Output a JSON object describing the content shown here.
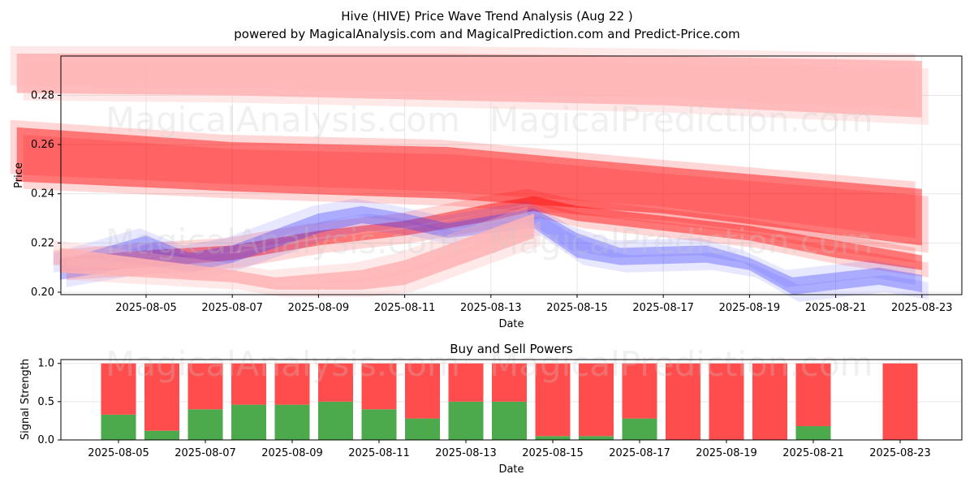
{
  "figure": {
    "title_line1": "Hive (HIVE) Price Wave Trend Analysis (Aug 22 )",
    "title_line2": "powered by MagicalAnalysis.com and MagicalPrediction.com and Predict-Price.com",
    "watermarks": [
      "MagicalAnalysis.com",
      "MagicalPrediction.com"
    ]
  },
  "colors": {
    "sell_red": "#ff4d4d",
    "buy_green": "#4caa4c",
    "band_red": "#ff0000",
    "band_blue": "#3b3bff",
    "band_pink": "#ffb3b3",
    "grid": "#e6e6e6"
  },
  "chart_data": [
    {
      "type": "area",
      "title": "",
      "xlabel": "Date",
      "ylabel": "Price",
      "x_ticks": [
        "2025-08-05",
        "2025-08-07",
        "2025-08-09",
        "2025-08-11",
        "2025-08-13",
        "2025-08-15",
        "2025-08-17",
        "2025-08-19",
        "2025-08-21",
        "2025-08-23"
      ],
      "y_ticks": [
        "0.20",
        "0.22",
        "0.24",
        "0.26",
        "0.28"
      ],
      "xlim": [
        "2025-08-02",
        "2025-08-23"
      ],
      "ylim": [
        0.199,
        0.296
      ],
      "grid": true,
      "series": [
        {
          "color": "pink",
          "x": [
            "2025-08-02",
            "2025-08-07",
            "2025-08-12",
            "2025-08-17",
            "2025-08-23"
          ],
          "lower": [
            0.281,
            0.28,
            0.278,
            0.276,
            0.271
          ],
          "upper": [
            0.297,
            0.297,
            0.297,
            0.296,
            0.294
          ]
        },
        {
          "color": "red",
          "x": [
            "2025-08-02",
            "2025-08-07",
            "2025-08-12",
            "2025-08-17",
            "2025-08-23"
          ],
          "lower": [
            0.245,
            0.241,
            0.238,
            0.232,
            0.219
          ],
          "upper": [
            0.267,
            0.261,
            0.259,
            0.251,
            0.242
          ]
        },
        {
          "color": "red",
          "x": [
            "2025-08-03",
            "2025-08-05",
            "2025-08-07",
            "2025-08-09",
            "2025-08-11",
            "2025-08-13",
            "2025-08-14",
            "2025-08-15",
            "2025-08-17",
            "2025-08-19",
            "2025-08-21",
            "2025-08-23"
          ],
          "lower": [
            0.208,
            0.21,
            0.213,
            0.219,
            0.223,
            0.229,
            0.233,
            0.229,
            0.225,
            0.221,
            0.214,
            0.209
          ],
          "upper": [
            0.214,
            0.217,
            0.219,
            0.225,
            0.229,
            0.236,
            0.239,
            0.235,
            0.231,
            0.227,
            0.221,
            0.215
          ]
        },
        {
          "color": "blue",
          "x": [
            "2025-08-03",
            "2025-08-05",
            "2025-08-06",
            "2025-08-07",
            "2025-08-09",
            "2025-08-10",
            "2025-08-11",
            "2025-08-12",
            "2025-08-14",
            "2025-08-15",
            "2025-08-16",
            "2025-08-18",
            "2025-08-19",
            "2025-08-20",
            "2025-08-22",
            "2025-08-23"
          ],
          "lower": [
            0.205,
            0.211,
            0.208,
            0.212,
            0.224,
            0.228,
            0.226,
            0.222,
            0.226,
            0.214,
            0.211,
            0.212,
            0.209,
            0.199,
            0.203,
            0.2
          ],
          "upper": [
            0.213,
            0.223,
            0.216,
            0.219,
            0.232,
            0.235,
            0.232,
            0.228,
            0.234,
            0.224,
            0.218,
            0.219,
            0.214,
            0.206,
            0.21,
            0.207
          ]
        },
        {
          "color": "pink",
          "x": [
            "2025-08-03",
            "2025-08-07",
            "2025-08-08",
            "2025-08-10",
            "2025-08-11",
            "2025-08-14"
          ],
          "lower": [
            0.208,
            0.204,
            0.201,
            0.201,
            0.203,
            0.222
          ],
          "upper": [
            0.218,
            0.209,
            0.206,
            0.209,
            0.213,
            0.232
          ]
        }
      ]
    },
    {
      "type": "bar",
      "title": "Buy and Sell Powers",
      "xlabel": "Date",
      "ylabel": "Signal Strength",
      "x_ticks": [
        "2025-08-05",
        "2025-08-07",
        "2025-08-09",
        "2025-08-11",
        "2025-08-13",
        "2025-08-15",
        "2025-08-17",
        "2025-08-19",
        "2025-08-21",
        "2025-08-23"
      ],
      "y_ticks": [
        "0.0",
        "0.5",
        "1.0"
      ],
      "ylim": [
        0,
        1.05
      ],
      "grid": true,
      "categories": [
        "2025-08-05",
        "2025-08-06",
        "2025-08-07",
        "2025-08-08",
        "2025-08-09",
        "2025-08-10",
        "2025-08-11",
        "2025-08-12",
        "2025-08-13",
        "2025-08-14",
        "2025-08-15",
        "2025-08-16",
        "2025-08-17",
        "2025-08-18",
        "2025-08-19",
        "2025-08-20",
        "2025-08-21",
        "2025-08-23"
      ],
      "series": [
        {
          "name": "buy",
          "values": [
            0.33,
            0.12,
            0.4,
            0.46,
            0.46,
            0.5,
            0.4,
            0.28,
            0.5,
            0.5,
            0.05,
            0.05,
            0.28,
            0.0,
            0.0,
            0.0,
            0.18,
            0.0
          ]
        },
        {
          "name": "sell",
          "values": [
            0.67,
            0.88,
            0.6,
            0.54,
            0.54,
            0.5,
            0.6,
            0.72,
            0.5,
            0.5,
            0.95,
            0.95,
            0.72,
            1.0,
            1.0,
            1.0,
            0.82,
            1.0
          ]
        }
      ]
    }
  ]
}
